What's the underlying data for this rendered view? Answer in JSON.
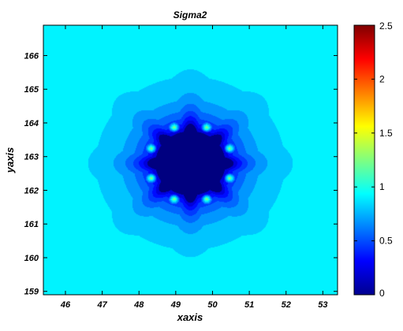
{
  "chart_data": {
    "type": "heatmap",
    "title": "Sigma2",
    "xlabel": "xaxis",
    "ylabel": "yaxis",
    "xlim": [
      45.4,
      53.4
    ],
    "ylim": [
      158.9,
      166.9
    ],
    "xticks": [
      "46",
      "47",
      "48",
      "49",
      "50",
      "51",
      "52",
      "53"
    ],
    "xtick_values": [
      46,
      47,
      48,
      49,
      50,
      51,
      52,
      53
    ],
    "yticks": [
      "159",
      "160",
      "161",
      "162",
      "163",
      "164",
      "165",
      "166"
    ],
    "ytick_values": [
      159,
      160,
      161,
      162,
      163,
      164,
      165,
      166
    ],
    "colorbar": {
      "min": 0,
      "max": 2.5,
      "ticks": [
        "0",
        "0.5",
        "1",
        "1.5",
        "2",
        "2.5"
      ],
      "tick_values": [
        0,
        0.5,
        1,
        1.5,
        2,
        2.5
      ],
      "colormap": "jet"
    },
    "field": {
      "center": [
        49.4,
        162.8
      ],
      "background_value": 1.0,
      "core_value": 0.0,
      "core_radius": 0.95,
      "lobe_count": 8,
      "lobe_radius": 1.0,
      "lobe_size": 0.38,
      "hotspot_radius": 1.15,
      "hotspot_value": 1.35
    },
    "grid": false
  },
  "colors": {
    "background": "#ffffff",
    "axis": "#000000"
  }
}
